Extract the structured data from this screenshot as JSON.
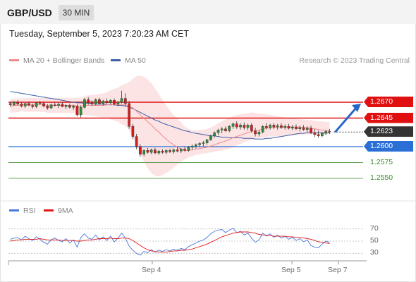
{
  "header": {
    "symbol": "GBP/USD",
    "interval": "30 MIN"
  },
  "datetime": "Tuesday, September 5, 2023 7:20:23 AM CET",
  "legend": {
    "ma20": "MA 20 + Bollinger Bands",
    "ma50": "MA 50",
    "ma20_color": "#f08a8a",
    "ma50_color": "#3a5fa8",
    "copyright": "Research © 2023 Trading Central"
  },
  "rsi_legend": {
    "rsi": "RSI",
    "nine_ma": "9MA",
    "rsi_color": "#4a78d8",
    "nine_ma_color": "#e01818"
  },
  "colors": {
    "resistance": "#e01010",
    "pivot": "#2a6fd6",
    "support": "#3a8a2a",
    "current": "#333333",
    "bollinger_fill": "#fde4e4",
    "arrow": "#2a66c8"
  },
  "price_levels": [
    {
      "value": 1.267,
      "label": "1.2670",
      "kind": "resistance"
    },
    {
      "value": 1.2645,
      "label": "1.2645",
      "kind": "resistance"
    },
    {
      "value": 1.2623,
      "label": "1.2623",
      "kind": "current"
    },
    {
      "value": 1.26,
      "label": "1.2600",
      "kind": "pivot"
    },
    {
      "value": 1.2575,
      "label": "1.2575",
      "kind": "support"
    },
    {
      "value": 1.255,
      "label": "1.2550",
      "kind": "support"
    }
  ],
  "rsi_ticks": [
    "70",
    "50",
    "30"
  ],
  "chart_data": {
    "type": "candlestick",
    "x_ticks": [
      "Sep 4",
      "Sep 5",
      "Sep 7"
    ],
    "y_range": [
      1.252,
      1.272
    ],
    "rsi_range": [
      20,
      80
    ],
    "candles": [
      [
        1.2668,
        1.2671,
        1.2663,
        1.2666
      ],
      [
        1.2666,
        1.2672,
        1.2664,
        1.267
      ],
      [
        1.267,
        1.2673,
        1.2665,
        1.2667
      ],
      [
        1.2667,
        1.267,
        1.2662,
        1.2664
      ],
      [
        1.2664,
        1.2669,
        1.2661,
        1.2668
      ],
      [
        1.2668,
        1.2671,
        1.2664,
        1.2665
      ],
      [
        1.2665,
        1.2668,
        1.266,
        1.2663
      ],
      [
        1.2663,
        1.267,
        1.2661,
        1.2669
      ],
      [
        1.2669,
        1.2672,
        1.2666,
        1.2668
      ],
      [
        1.2668,
        1.2671,
        1.2662,
        1.2664
      ],
      [
        1.2664,
        1.2667,
        1.2658,
        1.2661
      ],
      [
        1.2661,
        1.2668,
        1.2659,
        1.2666
      ],
      [
        1.2666,
        1.267,
        1.2663,
        1.2665
      ],
      [
        1.2665,
        1.2669,
        1.2661,
        1.2667
      ],
      [
        1.2667,
        1.267,
        1.2662,
        1.2663
      ],
      [
        1.2663,
        1.2667,
        1.2659,
        1.2665
      ],
      [
        1.2665,
        1.2668,
        1.266,
        1.2662
      ],
      [
        1.2662,
        1.2666,
        1.2658,
        1.2664
      ],
      [
        1.2664,
        1.2667,
        1.2648,
        1.265
      ],
      [
        1.265,
        1.2665,
        1.2646,
        1.2662
      ],
      [
        1.2662,
        1.2677,
        1.266,
        1.2674
      ],
      [
        1.2674,
        1.2678,
        1.2666,
        1.2669
      ],
      [
        1.2669,
        1.2673,
        1.2664,
        1.2667
      ],
      [
        1.2667,
        1.2676,
        1.2665,
        1.2674
      ],
      [
        1.2674,
        1.2677,
        1.2666,
        1.2668
      ],
      [
        1.2668,
        1.2674,
        1.2665,
        1.2672
      ],
      [
        1.2672,
        1.2676,
        1.2667,
        1.2669
      ],
      [
        1.2669,
        1.2675,
        1.2666,
        1.2673
      ],
      [
        1.2673,
        1.2676,
        1.2665,
        1.2667
      ],
      [
        1.2667,
        1.2672,
        1.2664,
        1.267
      ],
      [
        1.267,
        1.2688,
        1.2668,
        1.2676
      ],
      [
        1.2676,
        1.2684,
        1.2664,
        1.2668
      ],
      [
        1.2668,
        1.2672,
        1.2628,
        1.2632
      ],
      [
        1.2632,
        1.2636,
        1.2612,
        1.2616
      ],
      [
        1.2616,
        1.262,
        1.2596,
        1.26
      ],
      [
        1.26,
        1.2604,
        1.2584,
        1.2588
      ],
      [
        1.2588,
        1.2596,
        1.2585,
        1.2594
      ],
      [
        1.2594,
        1.2598,
        1.2589,
        1.2591
      ],
      [
        1.2591,
        1.2597,
        1.2588,
        1.2595
      ],
      [
        1.2595,
        1.2598,
        1.2588,
        1.259
      ],
      [
        1.259,
        1.2595,
        1.2587,
        1.2593
      ],
      [
        1.2593,
        1.2596,
        1.2589,
        1.2591
      ],
      [
        1.2591,
        1.2596,
        1.2588,
        1.2594
      ],
      [
        1.2594,
        1.2597,
        1.259,
        1.2592
      ],
      [
        1.2592,
        1.2597,
        1.2589,
        1.2595
      ],
      [
        1.2595,
        1.2599,
        1.2591,
        1.2593
      ],
      [
        1.2593,
        1.2598,
        1.259,
        1.2596
      ],
      [
        1.2596,
        1.26,
        1.2592,
        1.2594
      ],
      [
        1.2594,
        1.2601,
        1.2592,
        1.2599
      ],
      [
        1.2599,
        1.2603,
        1.2595,
        1.2601
      ],
      [
        1.2601,
        1.2605,
        1.2597,
        1.2603
      ],
      [
        1.2603,
        1.2607,
        1.2599,
        1.2605
      ],
      [
        1.2605,
        1.2609,
        1.2601,
        1.2606
      ],
      [
        1.2606,
        1.2612,
        1.2603,
        1.2611
      ],
      [
        1.2611,
        1.2619,
        1.2609,
        1.2617
      ],
      [
        1.2617,
        1.2624,
        1.2614,
        1.2622
      ],
      [
        1.2622,
        1.2628,
        1.2618,
        1.2626
      ],
      [
        1.2626,
        1.2631,
        1.2621,
        1.2628
      ],
      [
        1.2628,
        1.2632,
        1.2623,
        1.2625
      ],
      [
        1.2625,
        1.2634,
        1.2623,
        1.2632
      ],
      [
        1.2632,
        1.2638,
        1.2628,
        1.2636
      ],
      [
        1.2636,
        1.264,
        1.2628,
        1.2631
      ],
      [
        1.2631,
        1.2637,
        1.2627,
        1.2634
      ],
      [
        1.2634,
        1.2638,
        1.2627,
        1.263
      ],
      [
        1.263,
        1.2636,
        1.2626,
        1.2634
      ],
      [
        1.2634,
        1.2637,
        1.2622,
        1.2625
      ],
      [
        1.2625,
        1.263,
        1.2616,
        1.262
      ],
      [
        1.262,
        1.2626,
        1.2616,
        1.2623
      ],
      [
        1.2623,
        1.2634,
        1.2621,
        1.2632
      ],
      [
        1.2632,
        1.2637,
        1.2627,
        1.263
      ],
      [
        1.263,
        1.2636,
        1.2627,
        1.2634
      ],
      [
        1.2634,
        1.2637,
        1.2628,
        1.2631
      ],
      [
        1.2631,
        1.2636,
        1.2627,
        1.2633
      ],
      [
        1.2633,
        1.2637,
        1.2628,
        1.263
      ],
      [
        1.263,
        1.2635,
        1.2627,
        1.2632
      ],
      [
        1.2632,
        1.2636,
        1.2627,
        1.2629
      ],
      [
        1.2629,
        1.2634,
        1.2626,
        1.2631
      ],
      [
        1.2631,
        1.2635,
        1.2626,
        1.2628
      ],
      [
        1.2628,
        1.2633,
        1.2624,
        1.263
      ],
      [
        1.263,
        1.2634,
        1.2625,
        1.2627
      ],
      [
        1.2627,
        1.2632,
        1.2623,
        1.2629
      ],
      [
        1.2629,
        1.2633,
        1.262,
        1.2622
      ],
      [
        1.2622,
        1.2628,
        1.2615,
        1.2619
      ],
      [
        1.2619,
        1.2625,
        1.2614,
        1.2617
      ],
      [
        1.2617,
        1.2623,
        1.2615,
        1.2621
      ],
      [
        1.2621,
        1.2626,
        1.2618,
        1.2624
      ],
      [
        1.2624,
        1.2628,
        1.262,
        1.2623
      ]
    ],
    "ma20": [
      1.2664,
      1.2665,
      1.2665,
      1.2666,
      1.2666,
      1.2666,
      1.2666,
      1.2666,
      1.2666,
      1.2666,
      1.2665,
      1.2665,
      1.2665,
      1.2665,
      1.2665,
      1.2665,
      1.2665,
      1.2665,
      1.2664,
      1.2664,
      1.2665,
      1.2665,
      1.2665,
      1.2665,
      1.2665,
      1.2665,
      1.2666,
      1.2666,
      1.2666,
      1.2666,
      1.2666,
      1.2666,
      1.2664,
      1.2661,
      1.2656,
      1.265,
      1.2645,
      1.2639,
      1.2634,
      1.2628,
      1.2623,
      1.2617,
      1.2612,
      1.2607,
      1.2603,
      1.2599,
      1.2596,
      1.2594,
      1.2594,
      1.2595,
      1.2596,
      1.2597,
      1.2598,
      1.2599,
      1.2601,
      1.2603,
      1.2605,
      1.2607,
      1.2609,
      1.2611,
      1.2614,
      1.2616,
      1.2618,
      1.262,
      1.2622,
      1.2624,
      1.2625,
      1.2626,
      1.2628,
      1.2629,
      1.263,
      1.263,
      1.2631,
      1.2631,
      1.2631,
      1.2631,
      1.2631,
      1.2631,
      1.2631,
      1.263,
      1.263,
      1.2629,
      1.2628,
      1.2627,
      1.2626,
      1.2626,
      1.2625
    ],
    "ma50": [
      1.2687,
      1.2686,
      1.2685,
      1.2684,
      1.2683,
      1.2682,
      1.2681,
      1.268,
      1.2679,
      1.2678,
      1.2677,
      1.2676,
      1.2675,
      1.2674,
      1.2673,
      1.2672,
      1.2671,
      1.267,
      1.2669,
      1.2669,
      1.2668,
      1.2668,
      1.2668,
      1.2667,
      1.2667,
      1.2667,
      1.2666,
      1.2666,
      1.2666,
      1.2665,
      1.2665,
      1.2664,
      1.2662,
      1.266,
      1.2657,
      1.2654,
      1.2651,
      1.2648,
      1.2645,
      1.2642,
      1.264,
      1.2637,
      1.2635,
      1.2633,
      1.2631,
      1.2629,
      1.2627,
      1.2625,
      1.2624,
      1.2622,
      1.2621,
      1.262,
      1.2619,
      1.2618,
      1.2617,
      1.2617,
      1.2616,
      1.2615,
      1.2615,
      1.2614,
      1.2614,
      1.2614,
      1.2614,
      1.2613,
      1.2613,
      1.2613,
      1.2612,
      1.2612,
      1.2612,
      1.2613,
      1.2613,
      1.2614,
      1.2615,
      1.2616,
      1.2617,
      1.2618,
      1.2619,
      1.262,
      1.2621,
      1.2621,
      1.2622,
      1.2622,
      1.2622,
      1.2622,
      1.2622,
      1.2622,
      1.2622
    ],
    "bb_upper": [
      1.2675,
      1.2676,
      1.2676,
      1.2676,
      1.2677,
      1.2677,
      1.2677,
      1.2677,
      1.2677,
      1.2677,
      1.2677,
      1.2677,
      1.2677,
      1.2677,
      1.2677,
      1.2677,
      1.2677,
      1.2677,
      1.2677,
      1.2677,
      1.268,
      1.2681,
      1.2681,
      1.2682,
      1.2683,
      1.2684,
      1.2686,
      1.2689,
      1.2691,
      1.2693,
      1.2697,
      1.2699,
      1.2702,
      1.2707,
      1.2711,
      1.2712,
      1.271,
      1.2706,
      1.27,
      1.2692,
      1.2683,
      1.2674,
      1.2665,
      1.2657,
      1.265,
      1.2644,
      1.2638,
      1.2632,
      1.2628,
      1.2626,
      1.2626,
      1.2626,
      1.2627,
      1.2628,
      1.263,
      1.2633,
      1.2637,
      1.264,
      1.2643,
      1.2645,
      1.2648,
      1.265,
      1.2651,
      1.2652,
      1.2653,
      1.2654,
      1.2653,
      1.2652,
      1.2652,
      1.2651,
      1.265,
      1.2649,
      1.2648,
      1.2647,
      1.2646,
      1.2645,
      1.2645,
      1.2644,
      1.2643,
      1.2643,
      1.2642,
      1.2642,
      1.2641,
      1.264,
      1.264,
      1.2639,
      1.2639
    ],
    "bb_lower": [
      1.2653,
      1.2654,
      1.2654,
      1.2656,
      1.2655,
      1.2655,
      1.2655,
      1.2655,
      1.2655,
      1.2655,
      1.2653,
      1.2653,
      1.2653,
      1.2653,
      1.2653,
      1.2653,
      1.2653,
      1.2653,
      1.2651,
      1.2651,
      1.265,
      1.2649,
      1.2649,
      1.2648,
      1.2647,
      1.2646,
      1.2646,
      1.2643,
      1.2641,
      1.2639,
      1.2635,
      1.2633,
      1.2626,
      1.2615,
      1.2601,
      1.2588,
      1.2576,
      1.2566,
      1.2558,
      1.2554,
      1.2553,
      1.2555,
      1.2559,
      1.2562,
      1.2567,
      1.2572,
      1.2576,
      1.258,
      1.2583,
      1.2585,
      1.2587,
      1.2588,
      1.2589,
      1.259,
      1.2591,
      1.2592,
      1.2593,
      1.2594,
      1.2595,
      1.2597,
      1.2599,
      1.2602,
      1.2604,
      1.2607,
      1.2609,
      1.2611,
      1.2612,
      1.2613,
      1.2614,
      1.2615,
      1.2616,
      1.2616,
      1.2616,
      1.2616,
      1.2617,
      1.2617,
      1.2618,
      1.2618,
      1.2619,
      1.2619,
      1.2619,
      1.2619,
      1.2619,
      1.2619,
      1.2619,
      1.2619,
      1.2619
    ],
    "rsi": [
      53,
      55,
      56,
      52,
      58,
      54,
      51,
      57,
      53,
      48,
      45,
      52,
      55,
      51,
      49,
      54,
      47,
      52,
      40,
      56,
      62,
      55,
      53,
      60,
      52,
      57,
      51,
      58,
      49,
      55,
      63,
      55,
      42,
      35,
      30,
      27,
      33,
      31,
      36,
      32,
      35,
      33,
      36,
      34,
      37,
      35,
      38,
      36,
      41,
      44,
      47,
      50,
      52,
      56,
      62,
      66,
      68,
      69,
      64,
      68,
      71,
      64,
      66,
      60,
      63,
      55,
      48,
      52,
      63,
      58,
      62,
      56,
      60,
      55,
      58,
      53,
      56,
      51,
      54,
      49,
      52,
      43,
      40,
      39,
      45,
      50,
      48
    ],
    "rsi_ma": [
      50,
      51,
      52,
      52,
      53,
      53,
      53,
      53,
      54,
      53,
      52,
      52,
      52,
      52,
      51,
      51,
      51,
      51,
      50,
      50,
      51,
      52,
      52,
      53,
      54,
      54,
      54,
      55,
      54,
      54,
      55,
      55,
      54,
      51,
      47,
      43,
      39,
      36,
      34,
      33,
      32,
      32,
      32,
      33,
      34,
      34,
      35,
      35,
      36,
      37,
      39,
      41,
      43,
      45,
      48,
      51,
      54,
      57,
      59,
      61,
      63,
      64,
      65,
      65,
      65,
      64,
      63,
      61,
      60,
      60,
      59,
      58,
      58,
      58,
      58,
      57,
      57,
      56,
      56,
      55,
      54,
      53,
      51,
      49,
      48,
      47,
      46
    ]
  }
}
